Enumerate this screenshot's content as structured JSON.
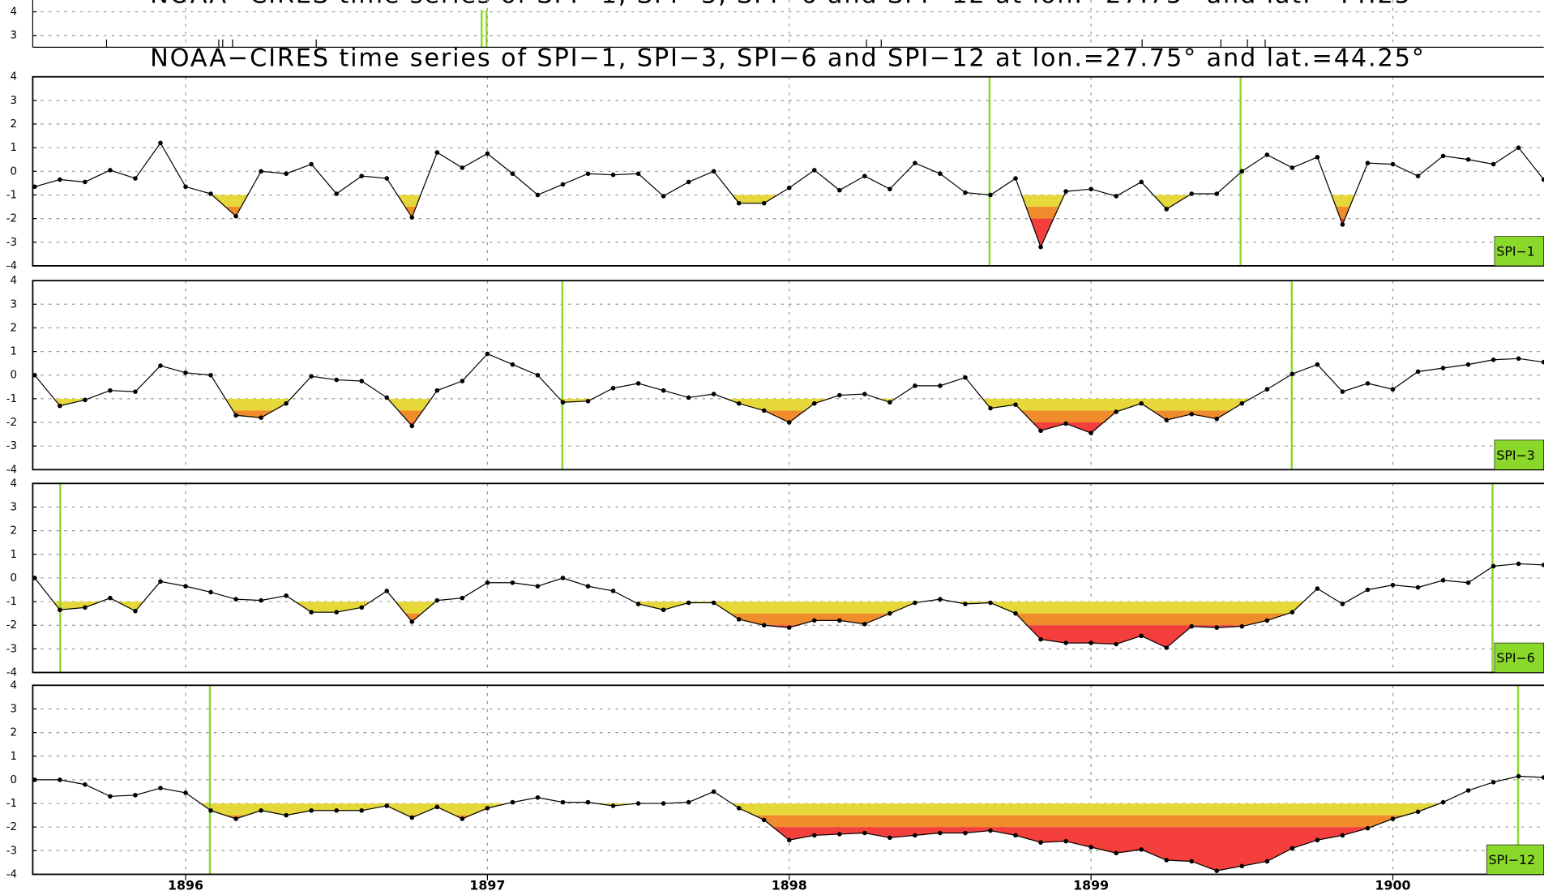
{
  "title": "NOAA−CIRES time series of SPI−1, SPI−3, SPI−6 and SPI−12 at lon.=27.75° and lat.=44.25°",
  "x_axis": {
    "categories": [
      null,
      null,
      null,
      null,
      null,
      null,
      "1896",
      null,
      null,
      null,
      null,
      null,
      null,
      null,
      null,
      null,
      null,
      null,
      "1897",
      null,
      null,
      null,
      null,
      null,
      null,
      null,
      null,
      null,
      null,
      null,
      "1898",
      null,
      null,
      null,
      null,
      null,
      null,
      null,
      null,
      null,
      null,
      null,
      "1899",
      null,
      null,
      null,
      null,
      null,
      null,
      null,
      null,
      null,
      null,
      null,
      "1900",
      null,
      null,
      null,
      null,
      null,
      null
    ]
  },
  "top_strip": {
    "ylim": [
      2.5,
      4.5
    ],
    "yticks": [
      3,
      4
    ]
  },
  "shading": [
    {
      "from": -1,
      "to": -1.5,
      "color": "#e6d83a"
    },
    {
      "from": -1.5,
      "to": -2,
      "color": "#f08c2c"
    },
    {
      "from": -2,
      "to": -4,
      "color": "#f43f3c"
    }
  ],
  "chart_data": [
    {
      "type": "line",
      "name": "SPI−1",
      "color": "#000000",
      "label_color": "#8ad82a",
      "ylim": [
        -4,
        4
      ],
      "yticks": [
        -4,
        -3,
        -2,
        -1,
        0,
        1,
        2,
        3,
        4
      ],
      "grid": true,
      "values": [
        -0.65,
        -0.35,
        -0.45,
        0.05,
        -0.3,
        1.2,
        -0.65,
        -0.95,
        -1.9,
        0.0,
        -0.1,
        0.3,
        -0.95,
        -0.2,
        -0.3,
        -1.95,
        0.8,
        0.15,
        0.75,
        -0.1,
        -1.0,
        -0.55,
        -0.1,
        -0.15,
        -0.1,
        -1.05,
        -0.45,
        0.0,
        -1.35,
        -1.35,
        -0.7,
        0.05,
        -0.8,
        -0.2,
        -0.75,
        0.35,
        -0.1,
        -0.9,
        -1.0,
        -0.3,
        -3.2,
        -0.85,
        -0.75,
        -1.05,
        -0.45,
        -1.6,
        -0.95,
        -0.95,
        0.0,
        0.7,
        0.15,
        0.6,
        -2.25,
        0.35,
        0.3,
        -0.2,
        0.65,
        0.5,
        0.3,
        1.0,
        -0.35
      ]
    },
    {
      "type": "line",
      "name": "SPI−3",
      "color": "#000000",
      "label_color": "#8ad82a",
      "ylim": [
        -4,
        4
      ],
      "yticks": [
        -4,
        -3,
        -2,
        -1,
        0,
        1,
        2,
        3,
        4
      ],
      "grid": true,
      "values": [
        0.0,
        -1.3,
        -1.05,
        -0.65,
        -0.7,
        0.4,
        0.1,
        0.0,
        -1.7,
        -1.8,
        -1.2,
        -0.05,
        -0.2,
        -0.25,
        -0.95,
        -2.15,
        -0.65,
        -0.25,
        0.9,
        0.45,
        0.0,
        -1.15,
        -1.1,
        -0.55,
        -0.35,
        -0.65,
        -0.95,
        -0.8,
        -1.2,
        -1.5,
        -2.0,
        -1.2,
        -0.85,
        -0.8,
        -1.15,
        -0.45,
        -0.45,
        -0.1,
        -1.4,
        -1.25,
        -2.35,
        -2.05,
        -2.45,
        -1.55,
        -1.2,
        -1.9,
        -1.65,
        -1.85,
        -1.2,
        -0.6,
        0.05,
        0.45,
        -0.7,
        -0.35,
        -0.6,
        0.15,
        0.3,
        0.45,
        0.65,
        0.7,
        0.55
      ]
    },
    {
      "type": "line",
      "name": "SPI−6",
      "color": "#000000",
      "label_color": "#8ad82a",
      "ylim": [
        -4,
        4
      ],
      "yticks": [
        -4,
        -3,
        -2,
        -1,
        0,
        1,
        2,
        3,
        4
      ],
      "grid": true,
      "values": [
        0.0,
        -1.35,
        -1.25,
        -0.85,
        -1.4,
        -0.15,
        -0.35,
        -0.6,
        -0.9,
        -0.95,
        -0.75,
        -1.45,
        -1.45,
        -1.25,
        -0.55,
        -1.85,
        -0.95,
        -0.85,
        -0.2,
        -0.2,
        -0.35,
        0.0,
        -0.35,
        -0.55,
        -1.1,
        -1.35,
        -1.05,
        -1.05,
        -1.75,
        -2.0,
        -2.1,
        -1.8,
        -1.8,
        -1.95,
        -1.5,
        -1.05,
        -0.9,
        -1.1,
        -1.05,
        -1.5,
        -2.6,
        -2.75,
        -2.75,
        -2.8,
        -2.45,
        -2.95,
        -2.05,
        -2.1,
        -2.05,
        -1.8,
        -1.45,
        -0.45,
        -1.1,
        -0.5,
        -0.3,
        -0.4,
        -0.1,
        -0.2,
        0.5,
        0.6,
        0.55
      ]
    },
    {
      "type": "line",
      "name": "SPI−12",
      "color": "#000000",
      "label_color": "#8ad82a",
      "ylim": [
        -4,
        4
      ],
      "yticks": [
        -4,
        -3,
        -2,
        -1,
        0,
        1,
        2,
        3,
        4
      ],
      "grid": true,
      "values": [
        0.0,
        0.0,
        -0.2,
        -0.7,
        -0.65,
        -0.35,
        -0.55,
        -1.3,
        -1.65,
        -1.3,
        -1.5,
        -1.3,
        -1.3,
        -1.3,
        -1.1,
        -1.6,
        -1.15,
        -1.65,
        -1.2,
        -0.95,
        -0.75,
        -0.95,
        -0.95,
        -1.1,
        -1.0,
        -1.0,
        -0.95,
        -0.5,
        -1.2,
        -1.7,
        -2.55,
        -2.35,
        -2.3,
        -2.25,
        -2.45,
        -2.35,
        -2.25,
        -2.25,
        -2.15,
        -2.35,
        -2.65,
        -2.6,
        -2.85,
        -3.1,
        -2.95,
        -3.4,
        -3.45,
        -3.85,
        -3.65,
        -3.45,
        -2.9,
        -2.55,
        -2.35,
        -2.05,
        -1.65,
        -1.35,
        -0.95,
        -0.45,
        -0.1,
        0.15,
        0.1
      ]
    }
  ]
}
